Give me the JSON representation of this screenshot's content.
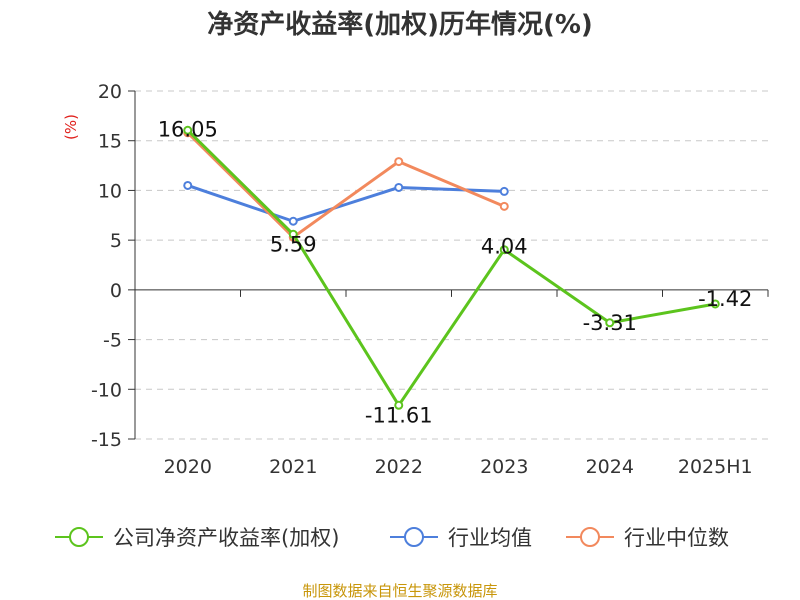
{
  "chart_data": {
    "type": "line",
    "title": "净资产收益率(加权)历年情况(%)",
    "ylabel": "(%)",
    "categories": [
      "2020",
      "2021",
      "2022",
      "2023",
      "2024",
      "2025H1"
    ],
    "ylim": [
      -15,
      20
    ],
    "yticks": [
      20,
      15,
      10,
      5,
      0,
      -5,
      -10,
      -15
    ],
    "grid": true,
    "legend_position": "bottom",
    "series": [
      {
        "name": "公司净资产收益率(加权)",
        "color": "#5cc41d",
        "values": [
          16.05,
          5.59,
          -11.61,
          4.04,
          -3.31,
          -1.42
        ],
        "labels": [
          "16.05",
          "5.59",
          "-11.61",
          "4.04",
          "-3.31",
          "-1.42"
        ]
      },
      {
        "name": "行业均值",
        "color": "#4d7fdc",
        "values": [
          10.5,
          6.9,
          10.3,
          9.9,
          null,
          null
        ]
      },
      {
        "name": "行业中位数",
        "color": "#f2895d",
        "values": [
          15.8,
          5.3,
          12.9,
          8.4,
          null,
          null
        ]
      }
    ]
  },
  "source": "制图数据来自恒生聚源数据库"
}
